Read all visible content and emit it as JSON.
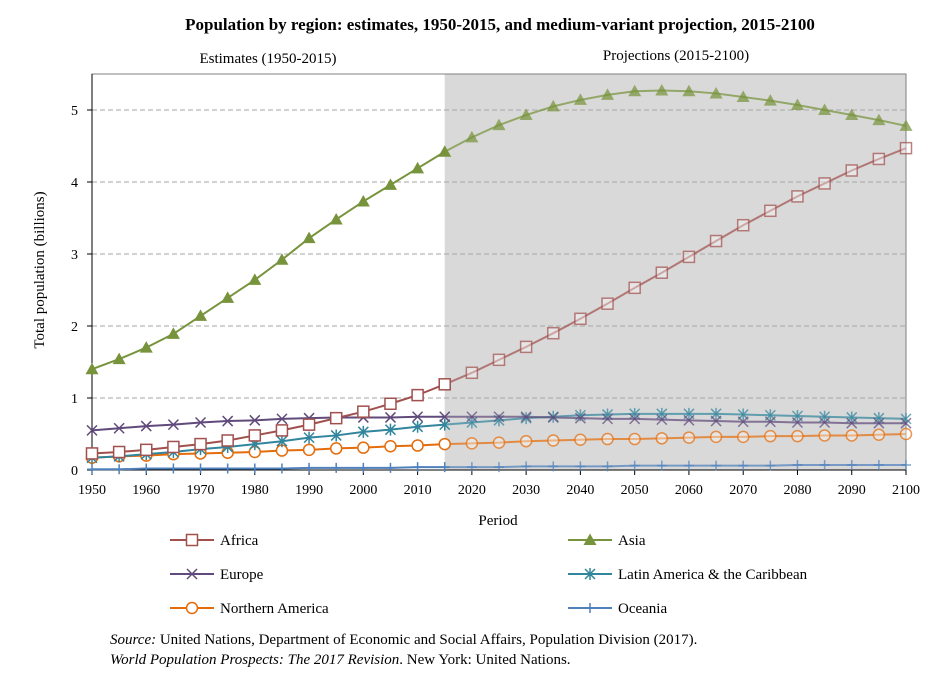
{
  "chart_data": {
    "type": "line",
    "title": "Population by region: estimates, 1950-2015, and medium-variant projection, 2015-2100",
    "section_labels": {
      "estimates": "Estimates (1950-2015)",
      "projections": "Projections (2015-2100)"
    },
    "projection_start": 2015,
    "xlabel": "Period",
    "ylabel": "Total population (billions)",
    "xlim": [
      1950,
      2100
    ],
    "ylim": [
      0,
      5.5
    ],
    "x_ticks": [
      1950,
      1960,
      1970,
      1980,
      1990,
      2000,
      2010,
      2020,
      2030,
      2040,
      2050,
      2060,
      2070,
      2080,
      2090,
      2100
    ],
    "y_ticks": [
      0,
      1,
      2,
      3,
      4,
      5
    ],
    "grid": "horizontal dashed",
    "legend_position": "bottom",
    "x": [
      1950,
      1955,
      1960,
      1965,
      1970,
      1975,
      1980,
      1985,
      1990,
      1995,
      2000,
      2005,
      2010,
      2015,
      2020,
      2025,
      2030,
      2035,
      2040,
      2045,
      2050,
      2055,
      2060,
      2065,
      2070,
      2075,
      2080,
      2085,
      2090,
      2095,
      2100
    ],
    "series": [
      {
        "name": "Africa",
        "color": "#A0504D",
        "marker": "square",
        "values": [
          0.23,
          0.25,
          0.28,
          0.32,
          0.36,
          0.41,
          0.48,
          0.55,
          0.63,
          0.72,
          0.81,
          0.92,
          1.04,
          1.19,
          1.35,
          1.53,
          1.71,
          1.9,
          2.1,
          2.31,
          2.53,
          2.74,
          2.96,
          3.18,
          3.4,
          3.6,
          3.8,
          3.98,
          4.16,
          4.32,
          4.47
        ]
      },
      {
        "name": "Asia",
        "color": "#77933C",
        "marker": "triangle",
        "values": [
          1.4,
          1.54,
          1.7,
          1.89,
          2.14,
          2.39,
          2.64,
          2.92,
          3.22,
          3.48,
          3.73,
          3.96,
          4.19,
          4.42,
          4.62,
          4.79,
          4.93,
          5.05,
          5.14,
          5.21,
          5.26,
          5.27,
          5.26,
          5.23,
          5.18,
          5.13,
          5.07,
          5.0,
          4.93,
          4.86,
          4.78
        ]
      },
      {
        "name": "Europe",
        "color": "#604A7B",
        "marker": "x",
        "values": [
          0.55,
          0.58,
          0.61,
          0.63,
          0.66,
          0.68,
          0.69,
          0.71,
          0.72,
          0.73,
          0.73,
          0.73,
          0.74,
          0.74,
          0.74,
          0.74,
          0.74,
          0.73,
          0.72,
          0.71,
          0.71,
          0.7,
          0.69,
          0.68,
          0.67,
          0.67,
          0.66,
          0.66,
          0.65,
          0.65,
          0.65
        ]
      },
      {
        "name": "Latin America & the Caribbean",
        "color": "#31859C",
        "marker": "asterisk",
        "values": [
          0.17,
          0.19,
          0.22,
          0.25,
          0.29,
          0.32,
          0.36,
          0.4,
          0.45,
          0.48,
          0.53,
          0.56,
          0.6,
          0.63,
          0.66,
          0.69,
          0.72,
          0.74,
          0.76,
          0.77,
          0.78,
          0.78,
          0.78,
          0.78,
          0.77,
          0.76,
          0.75,
          0.74,
          0.73,
          0.72,
          0.71
        ]
      },
      {
        "name": "Northern America",
        "color": "#E46C0A",
        "marker": "circle",
        "values": [
          0.17,
          0.19,
          0.2,
          0.22,
          0.23,
          0.24,
          0.25,
          0.27,
          0.28,
          0.3,
          0.31,
          0.33,
          0.34,
          0.36,
          0.37,
          0.38,
          0.4,
          0.41,
          0.42,
          0.43,
          0.43,
          0.44,
          0.45,
          0.46,
          0.46,
          0.47,
          0.47,
          0.48,
          0.48,
          0.49,
          0.5
        ]
      },
      {
        "name": "Oceania",
        "color": "#4F81BD",
        "marker": "plus",
        "values": [
          0.01,
          0.01,
          0.02,
          0.02,
          0.02,
          0.02,
          0.02,
          0.02,
          0.03,
          0.03,
          0.03,
          0.03,
          0.04,
          0.04,
          0.04,
          0.04,
          0.05,
          0.05,
          0.05,
          0.05,
          0.06,
          0.06,
          0.06,
          0.06,
          0.06,
          0.06,
          0.07,
          0.07,
          0.07,
          0.07,
          0.07
        ]
      }
    ],
    "source": {
      "label": "Source:",
      "text": " United Nations, Department of Economic and Social Affairs, Population Division (2017).",
      "publication": "World Population Prospects: The 2017 Revision",
      "publisher": ". New York: United Nations."
    },
    "colors": {
      "projection_shade": "#D9D9D9",
      "grid": "#A6A6A6"
    }
  }
}
